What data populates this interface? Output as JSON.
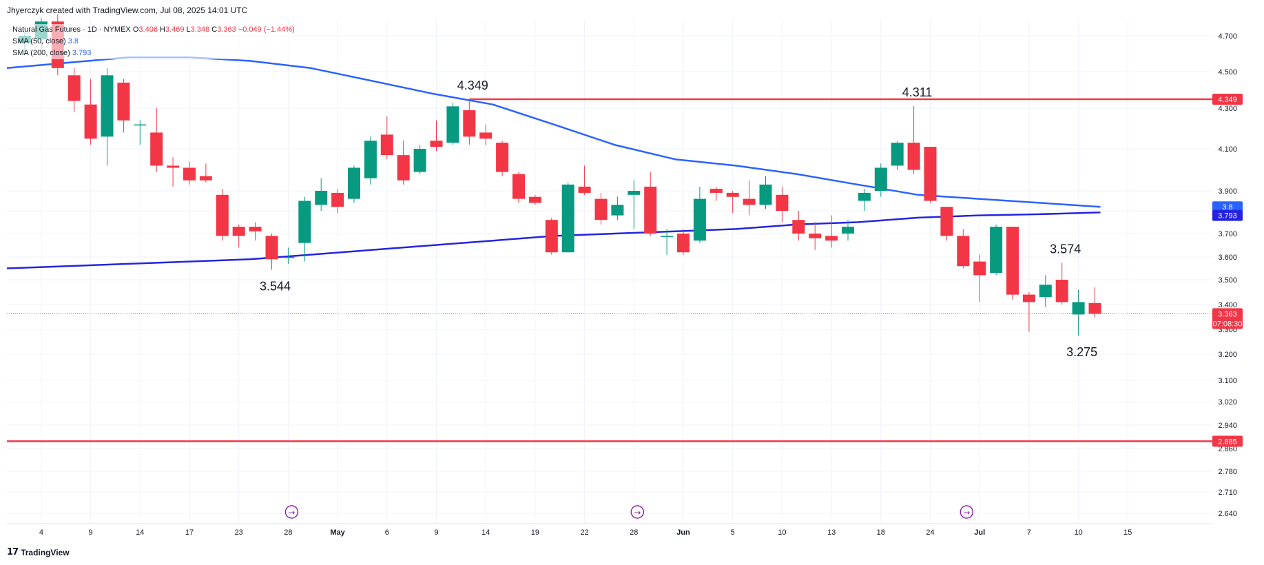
{
  "header": {
    "created_line": "Jhyerczyk created with TradingView.com, Jul 08, 2025 14:01 UTC"
  },
  "legend": {
    "symbol": "Natural Gas Futures · 1D · NYMEX",
    "o_label": "O",
    "o_value": "3.406",
    "h_label": "H",
    "h_value": "3.469",
    "l_label": "L",
    "l_value": "3.348",
    "c_label": "C",
    "c_value": "3.363",
    "change": "−0.049 (−1.44%)",
    "sma50_label": "SMA (50, close)",
    "sma50_value": "3.8",
    "sma200_label": "SMA (200, close)",
    "sma200_value": "3.793"
  },
  "brand": {
    "logo": "17",
    "name": "TradingView"
  },
  "colors": {
    "up": "#089981",
    "down": "#f23645",
    "sma50": "#2962ff",
    "sma200": "#2424e0",
    "level": "#f23645",
    "grid": "#f0f3fa",
    "axis_text": "#131722",
    "event": "#8e24aa"
  },
  "chart_data": {
    "type": "candlestick",
    "price_axis_ticks": [
      "2.640",
      "2.710",
      "2.780",
      "2.860",
      "2.940",
      "3.020",
      "3.100",
      "3.200",
      "3.300",
      "3.400",
      "3.500",
      "3.600",
      "3.700",
      "3.800",
      "3.900",
      "4.100",
      "4.300",
      "4.500",
      "4.700"
    ],
    "time_axis_labels": [
      "4",
      "9",
      "14",
      "17",
      "23",
      "28",
      "May",
      "6",
      "9",
      "14",
      "19",
      "22",
      "28",
      "Jun",
      "5",
      "10",
      "13",
      "18",
      "24",
      "Jul",
      "7",
      "10",
      "15"
    ],
    "candles": [
      {
        "o": 4.66,
        "h": 4.72,
        "l": 4.6,
        "c": 4.7
      },
      {
        "o": 4.68,
        "h": 4.8,
        "l": 4.62,
        "c": 4.78
      },
      {
        "o": 4.78,
        "h": 4.82,
        "l": 4.48,
        "c": 4.52
      },
      {
        "o": 4.48,
        "h": 4.52,
        "l": 4.28,
        "c": 4.34
      },
      {
        "o": 4.32,
        "h": 4.46,
        "l": 4.12,
        "c": 4.15
      },
      {
        "o": 4.16,
        "h": 4.52,
        "l": 4.02,
        "c": 4.48
      },
      {
        "o": 4.44,
        "h": 4.46,
        "l": 4.18,
        "c": 4.24
      },
      {
        "o": 4.22,
        "h": 4.24,
        "l": 4.12,
        "c": 4.22
      },
      {
        "o": 4.18,
        "h": 4.3,
        "l": 3.99,
        "c": 4.02
      },
      {
        "o": 4.02,
        "h": 4.06,
        "l": 3.92,
        "c": 4.01
      },
      {
        "o": 4.01,
        "h": 4.04,
        "l": 3.93,
        "c": 3.95
      },
      {
        "o": 3.97,
        "h": 4.03,
        "l": 3.94,
        "c": 3.95
      },
      {
        "o": 3.88,
        "h": 3.91,
        "l": 3.67,
        "c": 3.69
      },
      {
        "o": 3.73,
        "h": 3.74,
        "l": 3.64,
        "c": 3.69
      },
      {
        "o": 3.73,
        "h": 3.75,
        "l": 3.67,
        "c": 3.71
      },
      {
        "o": 3.69,
        "h": 3.7,
        "l": 3.544,
        "c": 3.59
      },
      {
        "o": 3.6,
        "h": 3.64,
        "l": 3.57,
        "c": 3.6
      },
      {
        "o": 3.66,
        "h": 3.87,
        "l": 3.58,
        "c": 3.85
      },
      {
        "o": 3.83,
        "h": 3.96,
        "l": 3.8,
        "c": 3.9
      },
      {
        "o": 3.89,
        "h": 3.91,
        "l": 3.79,
        "c": 3.82
      },
      {
        "o": 3.86,
        "h": 4.02,
        "l": 3.84,
        "c": 4.01
      },
      {
        "o": 3.96,
        "h": 4.16,
        "l": 3.93,
        "c": 4.14
      },
      {
        "o": 4.17,
        "h": 4.26,
        "l": 4.05,
        "c": 4.07
      },
      {
        "o": 4.07,
        "h": 4.14,
        "l": 3.93,
        "c": 3.95
      },
      {
        "o": 3.99,
        "h": 4.12,
        "l": 3.98,
        "c": 4.1
      },
      {
        "o": 4.14,
        "h": 4.24,
        "l": 4.09,
        "c": 4.11
      },
      {
        "o": 4.13,
        "h": 4.33,
        "l": 4.12,
        "c": 4.31
      },
      {
        "o": 4.29,
        "h": 4.349,
        "l": 4.12,
        "c": 4.16
      },
      {
        "o": 4.18,
        "h": 4.22,
        "l": 4.12,
        "c": 4.15
      },
      {
        "o": 4.13,
        "h": 4.14,
        "l": 3.97,
        "c": 3.99
      },
      {
        "o": 3.98,
        "h": 3.99,
        "l": 3.84,
        "c": 3.86
      },
      {
        "o": 3.87,
        "h": 3.88,
        "l": 3.83,
        "c": 3.84
      },
      {
        "o": 3.76,
        "h": 3.77,
        "l": 3.61,
        "c": 3.62
      },
      {
        "o": 3.62,
        "h": 3.94,
        "l": 3.62,
        "c": 3.93
      },
      {
        "o": 3.92,
        "h": 4.02,
        "l": 3.88,
        "c": 3.89
      },
      {
        "o": 3.86,
        "h": 3.89,
        "l": 3.74,
        "c": 3.76
      },
      {
        "o": 3.78,
        "h": 3.87,
        "l": 3.76,
        "c": 3.83
      },
      {
        "o": 3.88,
        "h": 3.95,
        "l": 3.72,
        "c": 3.9
      },
      {
        "o": 3.92,
        "h": 3.99,
        "l": 3.69,
        "c": 3.7
      },
      {
        "o": 3.69,
        "h": 3.72,
        "l": 3.61,
        "c": 3.69
      },
      {
        "o": 3.7,
        "h": 3.72,
        "l": 3.61,
        "c": 3.62
      },
      {
        "o": 3.67,
        "h": 3.92,
        "l": 3.66,
        "c": 3.86
      },
      {
        "o": 3.91,
        "h": 3.92,
        "l": 3.85,
        "c": 3.89
      },
      {
        "o": 3.89,
        "h": 3.9,
        "l": 3.79,
        "c": 3.87
      },
      {
        "o": 3.86,
        "h": 3.95,
        "l": 3.78,
        "c": 3.83
      },
      {
        "o": 3.83,
        "h": 3.97,
        "l": 3.81,
        "c": 3.93
      },
      {
        "o": 3.88,
        "h": 3.92,
        "l": 3.75,
        "c": 3.8
      },
      {
        "o": 3.76,
        "h": 3.8,
        "l": 3.67,
        "c": 3.7
      },
      {
        "o": 3.7,
        "h": 3.75,
        "l": 3.63,
        "c": 3.68
      },
      {
        "o": 3.69,
        "h": 3.78,
        "l": 3.64,
        "c": 3.67
      },
      {
        "o": 3.7,
        "h": 3.76,
        "l": 3.67,
        "c": 3.73
      },
      {
        "o": 3.85,
        "h": 3.91,
        "l": 3.8,
        "c": 3.89
      },
      {
        "o": 3.9,
        "h": 4.03,
        "l": 3.87,
        "c": 4.01
      },
      {
        "o": 4.02,
        "h": 4.14,
        "l": 4.0,
        "c": 4.13
      },
      {
        "o": 4.13,
        "h": 4.311,
        "l": 3.98,
        "c": 4.0
      },
      {
        "o": 4.11,
        "h": 4.11,
        "l": 3.84,
        "c": 3.85
      },
      {
        "o": 3.82,
        "h": 3.82,
        "l": 3.67,
        "c": 3.69
      },
      {
        "o": 3.69,
        "h": 3.72,
        "l": 3.55,
        "c": 3.56
      },
      {
        "o": 3.58,
        "h": 3.61,
        "l": 3.41,
        "c": 3.52
      },
      {
        "o": 3.53,
        "h": 3.74,
        "l": 3.52,
        "c": 3.73
      },
      {
        "o": 3.73,
        "h": 3.73,
        "l": 3.42,
        "c": 3.44
      },
      {
        "o": 3.44,
        "h": 3.45,
        "l": 3.29,
        "c": 3.41
      },
      {
        "o": 3.43,
        "h": 3.52,
        "l": 3.39,
        "c": 3.48
      },
      {
        "o": 3.5,
        "h": 3.574,
        "l": 3.4,
        "c": 3.41
      },
      {
        "o": 3.36,
        "h": 3.46,
        "l": 3.275,
        "c": 3.41
      },
      {
        "o": 3.406,
        "h": 3.469,
        "l": 3.348,
        "c": 3.363
      }
    ],
    "tick_positions": [
      1,
      4,
      7,
      10,
      13,
      16,
      19,
      22,
      25,
      28,
      31,
      34,
      37,
      40,
      43,
      46,
      49,
      52,
      55,
      58,
      61,
      64,
      67
    ],
    "sma50": [
      4.52,
      4.55,
      4.58,
      4.58,
      4.56,
      4.52,
      4.45,
      4.38,
      4.32,
      4.22,
      4.12,
      4.05,
      4.02,
      3.98,
      3.93,
      3.88,
      3.86,
      3.84,
      3.82
    ],
    "sma200": [
      3.55,
      3.56,
      3.57,
      3.58,
      3.59,
      3.61,
      3.63,
      3.65,
      3.67,
      3.69,
      3.7,
      3.71,
      3.72,
      3.74,
      3.75,
      3.77,
      3.78,
      3.785,
      3.793
    ],
    "horizontal_levels": [
      {
        "price": 4.349,
        "label": "4.349",
        "start_index": 27
      },
      {
        "price": 2.885,
        "label": "2.885",
        "start_index": 0
      }
    ],
    "annotations": [
      {
        "text": "4.349",
        "index": 27,
        "price": 4.349,
        "pos": "above"
      },
      {
        "text": "4.311",
        "index": 54,
        "price": 4.311,
        "pos": "above"
      },
      {
        "text": "3.544",
        "index": 15,
        "price": 3.544,
        "pos": "below"
      },
      {
        "text": "3.574",
        "index": 63,
        "price": 3.574,
        "pos": "above"
      },
      {
        "text": "3.275",
        "index": 64,
        "price": 3.275,
        "pos": "below"
      }
    ],
    "price_labels": {
      "last": "3.363",
      "countdown": "07:08:30",
      "sma50": "3.8",
      "sma200": "3.793",
      "level_high": "4.349",
      "level_low": "2.885"
    },
    "event_markers": [
      16,
      37,
      57
    ]
  }
}
